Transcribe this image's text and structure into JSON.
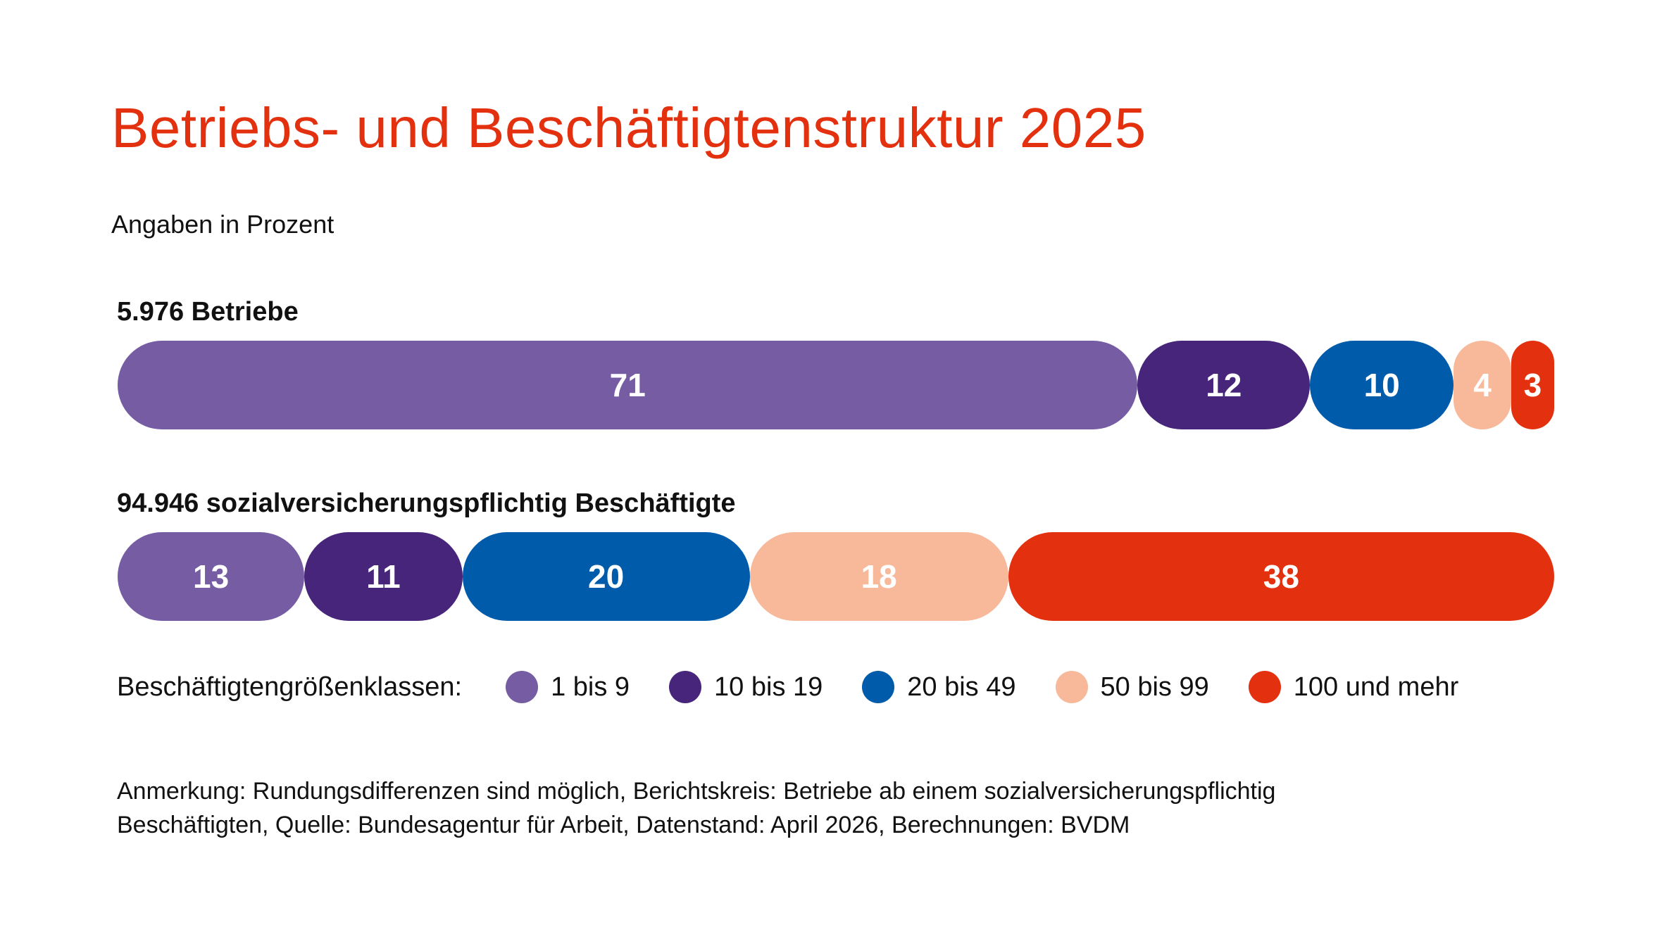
{
  "title": "Betriebs- und Beschäftigtenstruktur 2025",
  "subtitle": "Angaben in Prozent",
  "chart_data": {
    "type": "bar",
    "orientation": "horizontal-stacked",
    "categories": [
      "1 bis 9",
      "10 bis 19",
      "20 bis 49",
      "50 bis 99",
      "100 und mehr"
    ],
    "colors": [
      "#755ca3",
      "#46257a",
      "#005baa",
      "#f7b99a",
      "#e3310f"
    ],
    "label_colors": [
      "#ffffff",
      "#ffffff",
      "#ffffff",
      "#ffffff",
      "#ffffff"
    ],
    "series": [
      {
        "name": "5.976 Betriebe",
        "values": [
          71,
          12,
          10,
          4,
          3
        ]
      },
      {
        "name": "94.946 sozialversicherungspflichtig Beschäftigte",
        "values": [
          13,
          11,
          20,
          18,
          38
        ]
      }
    ],
    "legend": {
      "title": "Beschäftigtengrößenklassen:",
      "placement": "bottom-left"
    }
  },
  "note": [
    "Anmerkung: Rundungsdifferenzen sind möglich, Berichtskreis: Betriebe ab einem sozialversicherungspflichtig",
    "Beschäftigten, Quelle: Bundesagentur für Arbeit, Datenstand: April 2026, Berechnungen: BVDM"
  ]
}
